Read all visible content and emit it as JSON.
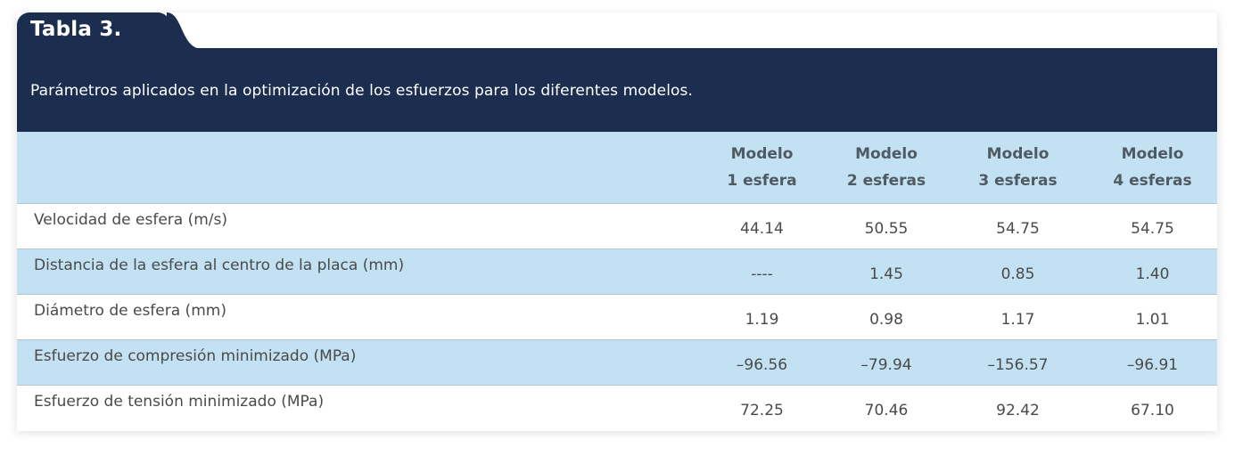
{
  "table": {
    "title": "Tabla 3.",
    "caption": "Parámetros aplicados en la optimización de los esfuerzos para los diferentes modelos.",
    "columns": [
      {
        "line1": "",
        "line2": ""
      },
      {
        "line1": "Modelo",
        "line2": "1 esfera"
      },
      {
        "line1": "Modelo",
        "line2": "2 esferas"
      },
      {
        "line1": "Modelo",
        "line2": "3 esferas"
      },
      {
        "line1": "Modelo",
        "line2": "4 esferas"
      }
    ],
    "rows": [
      {
        "label": "Velocidad de esfera (m/s)",
        "values": [
          "44.14",
          "50.55",
          "54.75",
          "54.75"
        ]
      },
      {
        "label": "Distancia de la esfera al centro de la placa (mm)",
        "values": [
          "----",
          "1.45",
          "0.85",
          "1.40"
        ]
      },
      {
        "label": "Diámetro de esfera (mm)",
        "values": [
          "1.19",
          "0.98",
          "1.17",
          "1.01"
        ]
      },
      {
        "label": "Esfuerzo de compresión minimizado (MPa)",
        "values": [
          "–96.56",
          "–79.94",
          "–156.57",
          "–96.91"
        ]
      },
      {
        "label": "Esfuerzo de tensión minimizado (MPa)",
        "values": [
          "72.25",
          "70.46",
          "92.42",
          "67.10"
        ]
      }
    ]
  },
  "colors": {
    "header_navy": "#1c2e4f",
    "row_shade": "#c2e1f3",
    "text": "#4a4a4a"
  }
}
